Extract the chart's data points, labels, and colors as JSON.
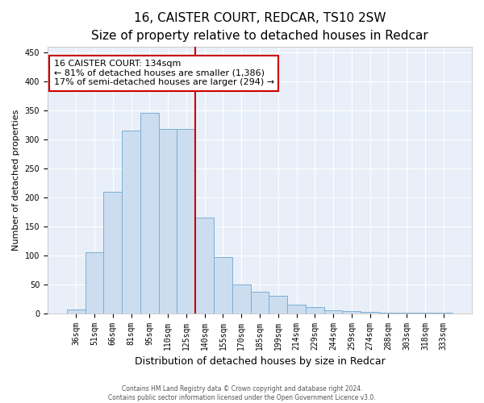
{
  "title": "16, CAISTER COURT, REDCAR, TS10 2SW",
  "subtitle": "Size of property relative to detached houses in Redcar",
  "xlabel": "Distribution of detached houses by size in Redcar",
  "ylabel": "Number of detached properties",
  "categories": [
    "36sqm",
    "51sqm",
    "66sqm",
    "81sqm",
    "95sqm",
    "110sqm",
    "125sqm",
    "140sqm",
    "155sqm",
    "170sqm",
    "185sqm",
    "199sqm",
    "214sqm",
    "229sqm",
    "244sqm",
    "259sqm",
    "274sqm",
    "288sqm",
    "303sqm",
    "318sqm",
    "333sqm"
  ],
  "values": [
    7,
    105,
    210,
    315,
    345,
    318,
    318,
    165,
    97,
    50,
    37,
    30,
    15,
    10,
    5,
    4,
    2,
    1,
    1,
    1,
    1
  ],
  "bar_color": "#ccddf0",
  "bar_edge_color": "#7bafd4",
  "property_line_color": "#cc0000",
  "annotation_line1": "16 CAISTER COURT: 134sqm",
  "annotation_line2": "← 81% of detached houses are smaller (1,386)",
  "annotation_line3": "17% of semi-detached houses are larger (294) →",
  "annotation_box_color": "#cc0000",
  "ylim": [
    0,
    460
  ],
  "yticks": [
    0,
    50,
    100,
    150,
    200,
    250,
    300,
    350,
    400,
    450
  ],
  "background_color": "#e8eff8",
  "footer_line1": "Contains HM Land Registry data © Crown copyright and database right 2024.",
  "footer_line2": "Contains public sector information licensed under the Open Government Licence v3.0.",
  "title_fontsize": 11,
  "subtitle_fontsize": 9,
  "xlabel_fontsize": 9,
  "ylabel_fontsize": 8,
  "tick_fontsize": 7,
  "annot_fontsize": 8
}
